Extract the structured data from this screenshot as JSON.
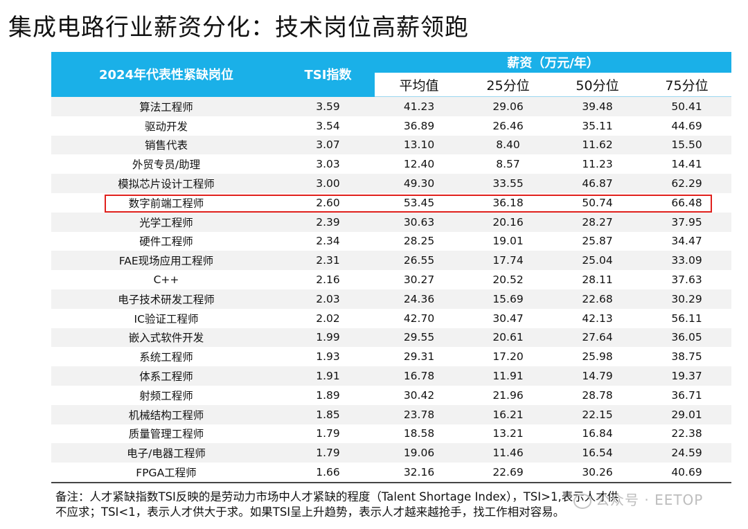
{
  "title": "集成电路行业薪资分化：技术岗位高薪领跑",
  "table": {
    "header": {
      "position_col": "2024年代表性紧缺岗位",
      "tsi_col": "TSI指数",
      "salary_group": "薪资（万元/年）",
      "salary_cols": [
        "平均值",
        "25分位",
        "50分位",
        "75分位"
      ]
    },
    "rows": [
      {
        "name": "算法工程师",
        "tsi": "3.59",
        "avg": "41.23",
        "p25": "29.06",
        "p50": "39.48",
        "p75": "50.41"
      },
      {
        "name": "驱动开发",
        "tsi": "3.54",
        "avg": "36.89",
        "p25": "26.46",
        "p50": "35.11",
        "p75": "44.69"
      },
      {
        "name": "销售代表",
        "tsi": "3.07",
        "avg": "13.10",
        "p25": "8.40",
        "p50": "11.62",
        "p75": "15.50"
      },
      {
        "name": "外贸专员/助理",
        "tsi": "3.03",
        "avg": "12.40",
        "p25": "8.57",
        "p50": "11.23",
        "p75": "14.41"
      },
      {
        "name": "模拟芯片设计工程师",
        "tsi": "3.00",
        "avg": "49.30",
        "p25": "33.55",
        "p50": "46.87",
        "p75": "62.29"
      },
      {
        "name": "数字前端工程师",
        "tsi": "2.60",
        "avg": "53.45",
        "p25": "36.18",
        "p50": "50.74",
        "p75": "66.48"
      },
      {
        "name": "光学工程师",
        "tsi": "2.39",
        "avg": "30.63",
        "p25": "20.16",
        "p50": "28.27",
        "p75": "37.95"
      },
      {
        "name": "硬件工程师",
        "tsi": "2.34",
        "avg": "28.25",
        "p25": "19.01",
        "p50": "25.87",
        "p75": "34.47"
      },
      {
        "name": "FAE现场应用工程师",
        "tsi": "2.31",
        "avg": "26.55",
        "p25": "17.74",
        "p50": "25.04",
        "p75": "33.09"
      },
      {
        "name": "C++",
        "tsi": "2.16",
        "avg": "30.27",
        "p25": "20.52",
        "p50": "28.11",
        "p75": "37.63"
      },
      {
        "name": "电子技术研发工程师",
        "tsi": "2.03",
        "avg": "24.36",
        "p25": "15.69",
        "p50": "22.68",
        "p75": "30.29"
      },
      {
        "name": "IC验证工程师",
        "tsi": "2.02",
        "avg": "42.70",
        "p25": "30.47",
        "p50": "42.13",
        "p75": "56.11"
      },
      {
        "name": "嵌入式软件开发",
        "tsi": "1.99",
        "avg": "29.55",
        "p25": "20.61",
        "p50": "27.64",
        "p75": "36.05"
      },
      {
        "name": "系统工程师",
        "tsi": "1.93",
        "avg": "29.31",
        "p25": "17.20",
        "p50": "25.98",
        "p75": "38.75"
      },
      {
        "name": "体系工程师",
        "tsi": "1.91",
        "avg": "16.78",
        "p25": "11.91",
        "p50": "14.79",
        "p75": "19.37"
      },
      {
        "name": "射频工程师",
        "tsi": "1.89",
        "avg": "30.42",
        "p25": "21.96",
        "p50": "28.78",
        "p75": "36.71"
      },
      {
        "name": "机械结构工程师",
        "tsi": "1.85",
        "avg": "23.78",
        "p25": "16.21",
        "p50": "22.15",
        "p75": "29.01"
      },
      {
        "name": "质量管理工程师",
        "tsi": "1.79",
        "avg": "18.58",
        "p25": "13.21",
        "p50": "16.84",
        "p75": "22.38"
      },
      {
        "name": "电子/电器工程师",
        "tsi": "1.79",
        "avg": "19.06",
        "p25": "11.46",
        "p50": "16.54",
        "p75": "24.59"
      },
      {
        "name": "FPGA工程师",
        "tsi": "1.66",
        "avg": "32.16",
        "p25": "22.69",
        "p50": "30.26",
        "p75": "40.69"
      }
    ],
    "highlighted_row": "数字前端工程师",
    "highlight_color": "#e0201c",
    "header_color": "#1ab0e8"
  },
  "note": {
    "line1": "备注：人才紧缺指数TSI反映的是劳动力市场中人才紧缺的程度（Talent Shortage Index），TSI>1,表示人才供",
    "line2": "不应求；TSI<1，表示人才供大于求。如果TSI呈上升趋势，表示人才越来越抢手，找工作相对容易。"
  },
  "watermark": "公众号 · EETOP"
}
